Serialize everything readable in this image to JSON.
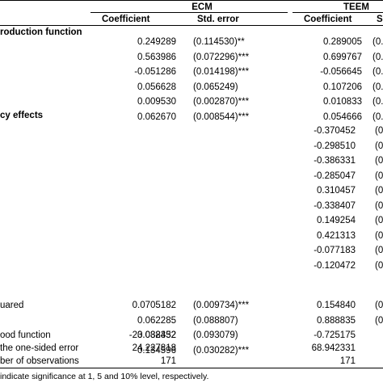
{
  "header": {
    "model_1": "ECM",
    "model_2": "TEEM",
    "coef_label_1": "Coefficient",
    "se_label_1": "Std. error",
    "coef_label_2": "Coefficient",
    "se_label_2": "S"
  },
  "sections": {
    "production": "roduction function",
    "efficiency": "cy effects"
  },
  "production_rows": [
    {
      "label": "",
      "ecm_coef": "0.249289",
      "ecm_se": "(0.114530)**",
      "teem_coef": "0.289005",
      "teem_se": "(0."
    },
    {
      "label": "",
      "ecm_coef": "0.563986",
      "ecm_se": "(0.072296)***",
      "teem_coef": "0.699767",
      "teem_se": "(0."
    },
    {
      "label": "",
      "ecm_coef": "-0.051286",
      "ecm_se": "(0.014198)***",
      "teem_coef": "-0.056645",
      "teem_se": "(0."
    },
    {
      "label": "",
      "ecm_coef": "0.056628",
      "ecm_se": "(0.065249)",
      "teem_coef": "0.107206",
      "teem_se": "(0."
    },
    {
      "label": "",
      "ecm_coef": "0.009530",
      "ecm_se": "(0.002870)***",
      "teem_coef": "0.010833",
      "teem_se": "(0."
    },
    {
      "label": "",
      "ecm_coef": "0.062670",
      "ecm_se": "(0.008544)***",
      "teem_coef": "0.054666",
      "teem_se": "(0."
    }
  ],
  "efficiency_rows": [
    {
      "teem_coef": "-0.370452",
      "teem_se": "(0"
    },
    {
      "teem_coef": "-0.298510",
      "teem_se": "(0"
    },
    {
      "teem_coef": "-0.386331",
      "teem_se": "(0"
    },
    {
      "teem_coef": "-0.285047",
      "teem_se": "(0"
    },
    {
      "teem_coef": "0.310457",
      "teem_se": "(0"
    },
    {
      "teem_coef": "-0.338407",
      "teem_se": "(0"
    },
    {
      "teem_coef": "0.149254",
      "teem_se": "(0"
    },
    {
      "teem_coef": "0.421313",
      "teem_se": "(0"
    },
    {
      "teem_coef": "-0.077183",
      "teem_se": "(0"
    },
    {
      "teem_coef": "-0.120472",
      "teem_se": "(0"
    }
  ],
  "stat_rows": [
    {
      "label": "uared",
      "ecm_coef": "0.0705182",
      "ecm_se": "(0.009734)***",
      "teem_coef": "0.154840",
      "teem_se": "(0"
    },
    {
      "label": "",
      "ecm_coef": "0.062285",
      "ecm_se": "(0.088807)",
      "teem_coef": "0.888835",
      "teem_se": "(0"
    },
    {
      "label": "",
      "ecm_coef": "0.038352",
      "ecm_se": "(0.093079)",
      "teem_coef": "",
      "teem_se": ""
    },
    {
      "label": "",
      "ecm_coef": "0.134596",
      "ecm_se": "(0.030282)***",
      "teem_coef": "",
      "teem_se": ""
    }
  ],
  "summary_rows": [
    {
      "label": "ood function",
      "ecm": "-23.082432",
      "teem": "-0.725175"
    },
    {
      "label": "the one-sided error",
      "ecm": "24.227818",
      "teem": "68.942331"
    },
    {
      "label": "ber of observations",
      "ecm": "171",
      "teem": "171"
    }
  ],
  "footnote": "indicate significance at 1, 5 and 10% level, respectively."
}
